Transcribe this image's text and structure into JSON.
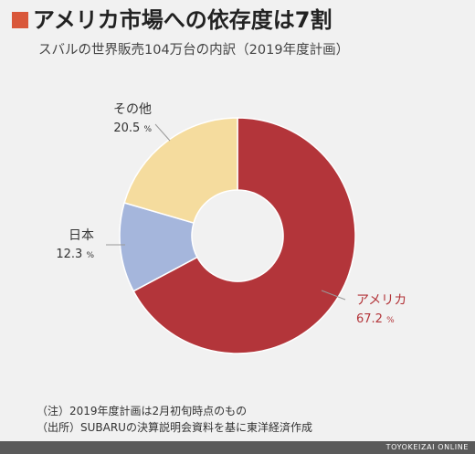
{
  "title": "アメリカ市場への依存度は7割",
  "subtitle": "スバルの世界販売104万台の内訳（2019年度計画）",
  "colors": {
    "title_mark": "#d9573a",
    "label_line": "#999999"
  },
  "chart_data": {
    "type": "pie",
    "donut": true,
    "unit": "%",
    "slices": [
      {
        "label": "アメリカ",
        "value": 67.2,
        "color": "#b3353a",
        "label_color": "#b3353a"
      },
      {
        "label": "日本",
        "value": 12.3,
        "color": "#a5b6dc",
        "label_color": "#333333"
      },
      {
        "label": "その他",
        "value": 20.5,
        "color": "#f5dc9e",
        "label_color": "#333333"
      }
    ],
    "start": "12 o'clock",
    "direction": "clockwise",
    "legend": "none"
  },
  "notes": [
    "（注）2019年度計画は2月初旬時点のもの",
    "（出所）SUBARUの決算説明会資料を基に東洋経済作成"
  ],
  "footer": "TOYOKEIZAI ONLINE"
}
